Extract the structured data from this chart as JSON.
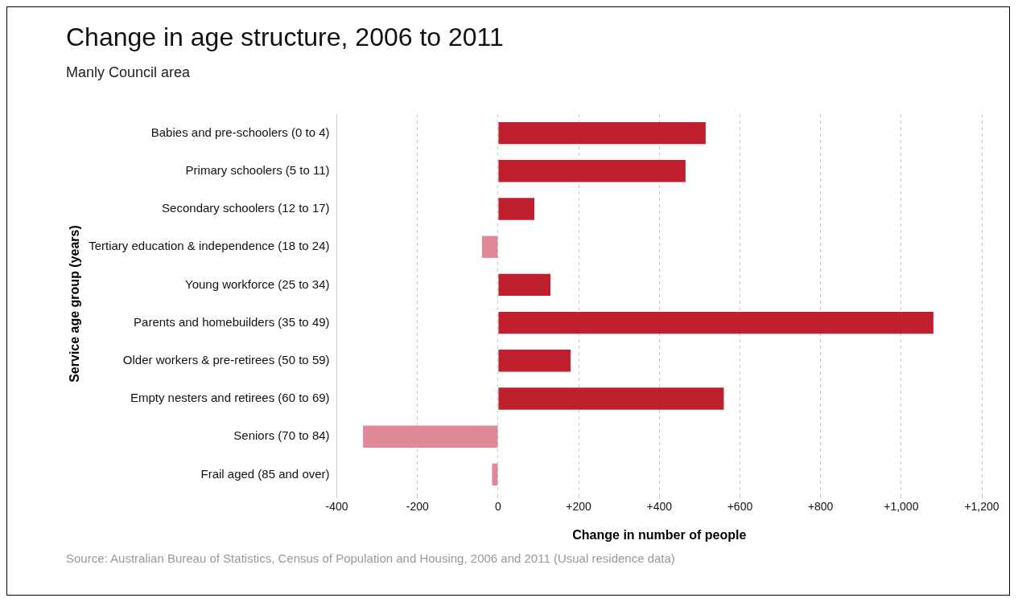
{
  "chart_data": {
    "type": "bar",
    "orientation": "horizontal",
    "title": "Change in age structure, 2006 to 2011",
    "subtitle": "Manly Council area",
    "categories": [
      "Babies and pre-schoolers (0 to 4)",
      "Primary schoolers (5 to 11)",
      "Secondary schoolers (12 to 17)",
      "Tertiary education & independence (18 to 24)",
      "Young workforce (25 to 34)",
      "Parents and homebuilders (35 to 49)",
      "Older workers & pre-retirees (50 to 59)",
      "Empty nesters and retirees (60 to 69)",
      "Seniors (70 to 84)",
      "Frail aged (85 and over)"
    ],
    "values": [
      515,
      465,
      90,
      -40,
      130,
      1080,
      180,
      560,
      -335,
      -15
    ],
    "colors": [
      "#c01f2e",
      "#c01f2e",
      "#c01f2e",
      "#e08a99",
      "#c01f2e",
      "#c01f2e",
      "#c01f2e",
      "#c01f2e",
      "#e08a99",
      "#e08a99"
    ],
    "xlabel": "Change in number of people",
    "ylabel": "Service age group (years)",
    "xlim": [
      -400,
      1200
    ],
    "xticks": [
      -400,
      -200,
      0,
      {
        "value": 200,
        "label": "+200"
      },
      {
        "value": 400,
        "label": "+400"
      },
      {
        "value": 600,
        "label": "+600"
      },
      {
        "value": 800,
        "label": "+800"
      },
      {
        "value": 1000,
        "label": "+1,000"
      },
      {
        "value": 1200,
        "label": "+1,200"
      }
    ],
    "grid": "x",
    "annotations": [
      "Source: Australian Bureau of Statistics, Census of Population and Housing, 2006 and 2011 (Usual residence data)"
    ]
  }
}
